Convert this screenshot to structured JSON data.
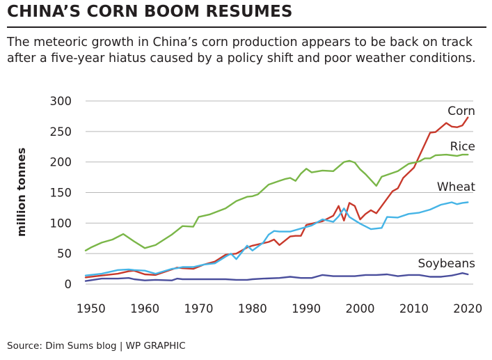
{
  "header": {
    "title": "CHINA’S CORN BOOM RESUMES",
    "subtitle": "The meteoric growth in China’s corn production appears to be back on track after a five-year hiatus caused by a policy shift and poor weather conditions."
  },
  "footer": {
    "source": "Source: Dim Sums blog  |  WP GRAPHIC"
  },
  "chart_data": {
    "type": "line",
    "title": "CHINA’S CORN BOOM RESUMES",
    "xlabel": "",
    "ylabel": "million tonnes",
    "xlim": [
      1949,
      2021
    ],
    "ylim": [
      0,
      300
    ],
    "xticks": [
      1950,
      1960,
      1970,
      1980,
      1990,
      2000,
      2010,
      2020
    ],
    "yticks": [
      0,
      50,
      100,
      150,
      200,
      250,
      300
    ],
    "grid": "horizontal",
    "legend": "labels at line ends",
    "series": [
      {
        "name": "Corn",
        "color": "#c8392b",
        "x": [
          1949,
          1952,
          1955,
          1957,
          1958,
          1960,
          1962,
          1965,
          1966,
          1967,
          1969,
          1971,
          1973,
          1975,
          1977,
          1979,
          1980,
          1983,
          1984,
          1985,
          1987,
          1988,
          1989,
          1990,
          1991,
          1993,
          1995,
          1996,
          1997,
          1998,
          1999,
          2000,
          2001,
          2002,
          2003,
          2005,
          2006,
          2007,
          2008,
          2010,
          2012,
          2013,
          2014,
          2016,
          2017,
          2018,
          2019,
          2020
        ],
        "y": [
          11,
          14,
          17,
          21,
          22,
          16,
          15,
          24,
          27,
          26,
          25,
          32,
          37,
          48,
          50,
          60,
          63,
          69,
          73,
          64,
          78,
          79,
          79,
          97,
          99,
          103,
          112,
          128,
          104,
          133,
          128,
          106,
          115,
          121,
          116,
          140,
          152,
          157,
          174,
          191,
          229,
          248,
          249,
          264,
          258,
          257,
          260,
          273
        ]
      },
      {
        "name": "Rice",
        "color": "#7ab648",
        "x": [
          1949,
          1950,
          1952,
          1954,
          1956,
          1958,
          1960,
          1962,
          1965,
          1966,
          1967,
          1969,
          1970,
          1972,
          1975,
          1977,
          1979,
          1980,
          1981,
          1983,
          1985,
          1986,
          1987,
          1988,
          1989,
          1990,
          1991,
          1993,
          1995,
          1997,
          1998,
          1999,
          2000,
          2001,
          2003,
          2004,
          2005,
          2007,
          2009,
          2011,
          2012,
          2013,
          2014,
          2016,
          2017,
          2018,
          2019,
          2020
        ],
        "y": [
          55,
          60,
          68,
          73,
          82,
          70,
          59,
          64,
          81,
          88,
          95,
          94,
          110,
          114,
          124,
          136,
          143,
          144,
          147,
          163,
          169,
          172,
          174,
          169,
          181,
          189,
          183,
          186,
          185,
          200,
          202,
          199,
          188,
          180,
          161,
          176,
          179,
          185,
          197,
          201,
          206,
          206,
          211,
          212,
          211,
          210,
          212,
          212
        ]
      },
      {
        "name": "Wheat",
        "color": "#45b4e6",
        "x": [
          1949,
          1952,
          1955,
          1957,
          1958,
          1960,
          1962,
          1965,
          1966,
          1967,
          1969,
          1971,
          1973,
          1975,
          1976,
          1977,
          1979,
          1980,
          1982,
          1983,
          1984,
          1985,
          1987,
          1989,
          1991,
          1993,
          1995,
          1996,
          1997,
          1998,
          2000,
          2002,
          2004,
          2005,
          2007,
          2009,
          2011,
          2013,
          2015,
          2016,
          2017,
          2018,
          2019,
          2020
        ],
        "y": [
          14,
          17,
          23,
          24,
          23,
          22,
          17,
          25,
          26,
          28,
          28,
          32,
          34,
          45,
          50,
          41,
          63,
          55,
          68,
          81,
          87,
          86,
          86,
          91,
          96,
          106,
          102,
          111,
          124,
          110,
          99,
          90,
          92,
          110,
          109,
          115,
          117,
          122,
          130,
          132,
          134,
          131,
          133,
          134
        ]
      },
      {
        "name": "Soybeans",
        "color": "#4a4e9c",
        "x": [
          1949,
          1952,
          1955,
          1957,
          1958,
          1960,
          1962,
          1965,
          1966,
          1967,
          1969,
          1971,
          1973,
          1975,
          1977,
          1979,
          1980,
          1982,
          1985,
          1987,
          1989,
          1991,
          1993,
          1995,
          1997,
          1999,
          2001,
          2003,
          2005,
          2007,
          2009,
          2011,
          2013,
          2015,
          2017,
          2018,
          2019,
          2020
        ],
        "y": [
          5,
          9,
          9,
          10,
          8,
          6,
          7,
          6,
          9,
          8,
          8,
          8,
          8,
          8,
          7,
          7,
          8,
          9,
          10,
          12,
          10,
          10,
          15,
          13,
          13,
          13,
          15,
          15,
          16,
          13,
          15,
          15,
          12,
          12,
          14,
          16,
          18,
          16
        ]
      }
    ]
  }
}
